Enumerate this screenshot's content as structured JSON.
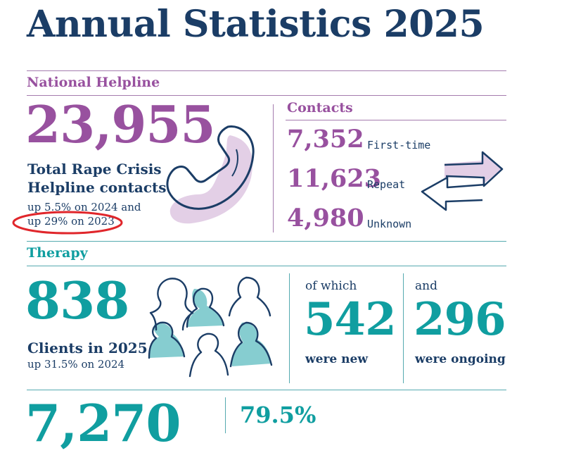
{
  "title": "Annual Statistics 2025",
  "colors": {
    "navy": "#1b3d66",
    "purple": "#98519f",
    "teal": "#109ea0",
    "highlight_circle": "#e0262b"
  },
  "helpline": {
    "section_label": "National Helpline",
    "total": "23,955",
    "description_line1": "Total Rape Crisis",
    "description_line2": "Helpline contacts",
    "change_2024": "up 5.5% on 2024 and",
    "change_2023": "up 29% on 2023",
    "icon": "telephone-handset-icon"
  },
  "contacts": {
    "section_label": "Contacts",
    "icon": "two-way-arrows-icon",
    "rows": [
      {
        "value": "7,352",
        "label": "First-time"
      },
      {
        "value": "11,623",
        "label": "Repeat"
      },
      {
        "value": "4,980",
        "label": "Unknown"
      }
    ]
  },
  "therapy": {
    "section_label": "Therapy",
    "total": "838",
    "description": "Clients in 2025",
    "change": "up 31.5% on 2024",
    "icon": "people-group-icon",
    "new_prefix": "of which",
    "new_value": "542",
    "new_label": "were new",
    "ongoing_prefix": "and",
    "ongoing_value": "296",
    "ongoing_label": "were ongoing"
  },
  "bottom": {
    "left_number": "7,270",
    "right_percent": "79.5%"
  }
}
